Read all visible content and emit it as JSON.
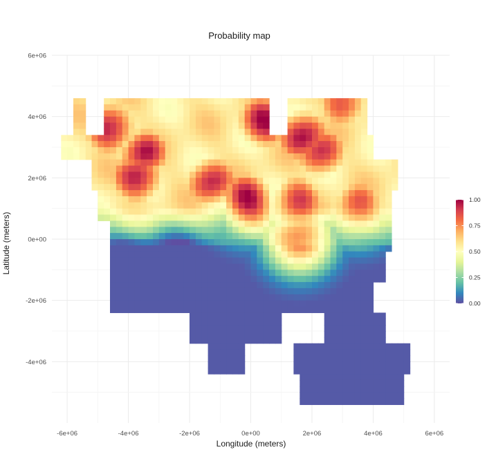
{
  "chart_data": {
    "type": "heatmap",
    "title": "Probability map",
    "xlabel": "Longitude (meters)",
    "ylabel": "Latitude (meters)",
    "xlim": [
      -6500000,
      6500000
    ],
    "ylim": [
      -6000000,
      6000000
    ],
    "x_ticks": [
      -6000000,
      -4000000,
      -2000000,
      0,
      2000000,
      4000000,
      6000000
    ],
    "x_tick_labels": [
      "-6e+06",
      "-4e+06",
      "-2e+06",
      "0e+00",
      "2e+06",
      "4e+06",
      "6e+06"
    ],
    "y_ticks": [
      -4000000,
      -2000000,
      0,
      2000000,
      4000000,
      6000000
    ],
    "y_tick_labels": [
      "-4e+06",
      "-2e+06",
      "0e+00",
      "2e+06",
      "4e+06",
      "6e+06"
    ],
    "grid": true,
    "legend": {
      "placement": "right",
      "title": "",
      "range": [
        0,
        1
      ],
      "breaks": [
        0,
        0.25,
        0.5,
        0.75,
        1
      ],
      "labels": [
        "0.00",
        "0.25",
        "0.50",
        "0.75",
        "1.00"
      ]
    },
    "colormap": {
      "name": "Spectral (reversed)",
      "stops": [
        {
          "value": 0.0,
          "color": "#5e4fa2"
        },
        {
          "value": 0.1,
          "color": "#3288bd"
        },
        {
          "value": 0.2,
          "color": "#66c2a5"
        },
        {
          "value": 0.3,
          "color": "#abdda4"
        },
        {
          "value": 0.4,
          "color": "#e6f598"
        },
        {
          "value": 0.5,
          "color": "#ffffbf"
        },
        {
          "value": 0.6,
          "color": "#fee08b"
        },
        {
          "value": 0.7,
          "color": "#fdae61"
        },
        {
          "value": 0.8,
          "color": "#f46d43"
        },
        {
          "value": 0.9,
          "color": "#d53e4f"
        },
        {
          "value": 1.0,
          "color": "#9e0142"
        }
      ]
    },
    "grid_resolution_m": 200000,
    "land_mask_lat_bands": [
      {
        "y": 3800000,
        "x_ranges": [
          [
            -5800000,
            -5500000
          ],
          [
            -4800000,
            500000
          ],
          [
            1100000,
            3700000
          ]
        ]
      },
      {
        "y": 3000000,
        "x_ranges": [
          [
            -6200000,
            3900000
          ]
        ]
      },
      {
        "y": 2000000,
        "x_ranges": [
          [
            -5300000,
            4600000
          ]
        ]
      },
      {
        "y": 1000000,
        "x_ranges": [
          [
            -5000000,
            4500000
          ]
        ]
      },
      {
        "y": 0,
        "x_ranges": [
          [
            -4600000,
            4400000
          ]
        ]
      },
      {
        "y": -1000000,
        "x_ranges": [
          [
            -4600000,
            4200000
          ]
        ]
      },
      {
        "y": -2000000,
        "x_ranges": [
          [
            -4600000,
            3800000
          ]
        ]
      },
      {
        "y": -3000000,
        "x_ranges": [
          [
            -2000000,
            800000
          ],
          [
            2300000,
            4200000
          ]
        ]
      },
      {
        "y": -4000000,
        "x_ranges": [
          [
            -1500000,
            -300000
          ],
          [
            1400000,
            5000000
          ]
        ]
      },
      {
        "y": -5000000,
        "x_ranges": [
          [
            1600000,
            4800000
          ]
        ]
      }
    ],
    "probability_hotspots": [
      {
        "x": -4700000,
        "y": 3500000,
        "value": 1.0
      },
      {
        "x": -3600000,
        "y": 2700000,
        "value": 0.95
      },
      {
        "x": -3800000,
        "y": 1900000,
        "value": 1.0
      },
      {
        "x": -1400000,
        "y": 1800000,
        "value": 0.95
      },
      {
        "x": -200000,
        "y": 1200000,
        "value": 1.0
      },
      {
        "x": 1400000,
        "y": 1200000,
        "value": 0.9
      },
      {
        "x": 300000,
        "y": 3700000,
        "value": 1.0
      },
      {
        "x": 1600000,
        "y": 3300000,
        "value": 1.0
      },
      {
        "x": 2200000,
        "y": 2700000,
        "value": 0.95
      },
      {
        "x": 2900000,
        "y": 4400000,
        "value": 0.9
      },
      {
        "x": 3400000,
        "y": 1000000,
        "value": 0.85
      },
      {
        "x": 1500000,
        "y": -100000,
        "value": 0.8
      }
    ]
  }
}
